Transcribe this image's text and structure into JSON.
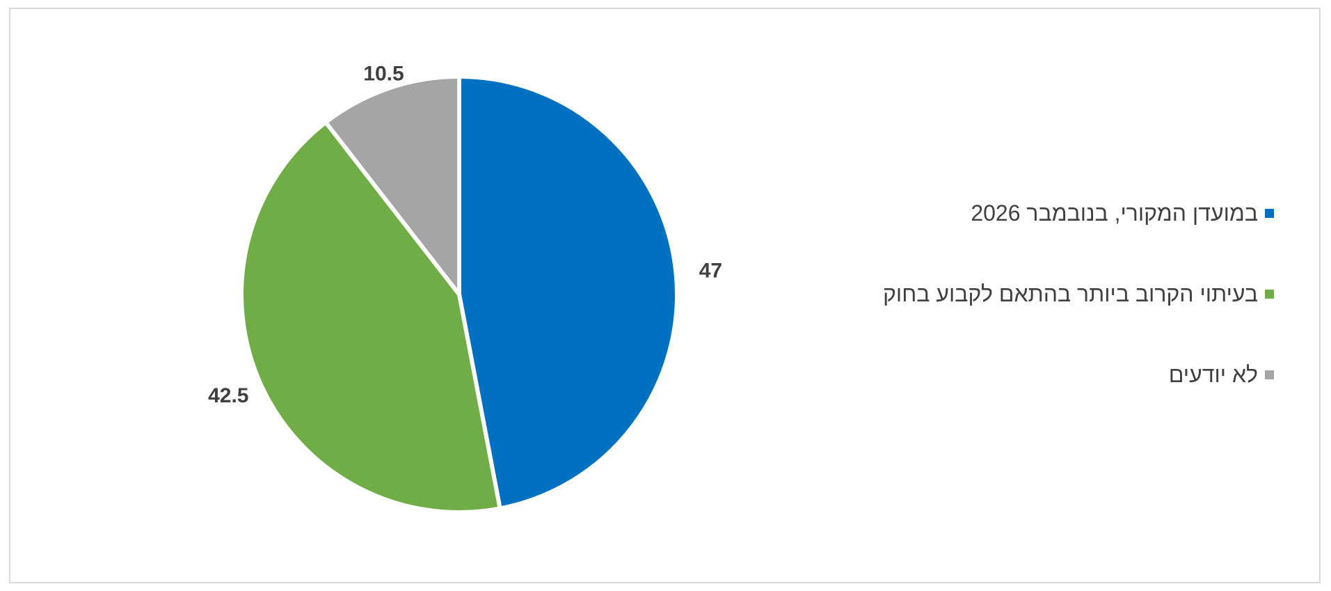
{
  "chart_data": {
    "type": "pie",
    "categories": [
      "במועדן המקורי, בנובמבר 2026",
      "בעיתוי הקרוב ביותר בהתאם לקבוע בחוק",
      "לא יודעים"
    ],
    "values": [
      47,
      42.5,
      10.5
    ],
    "data_labels": [
      "47",
      "42.5",
      "10.5"
    ],
    "colors": [
      "#0070C0",
      "#70AD47",
      "#A5A5A5"
    ],
    "title": "",
    "legend_position": "right",
    "start_angle_deg": 0,
    "direction": "clockwise"
  }
}
